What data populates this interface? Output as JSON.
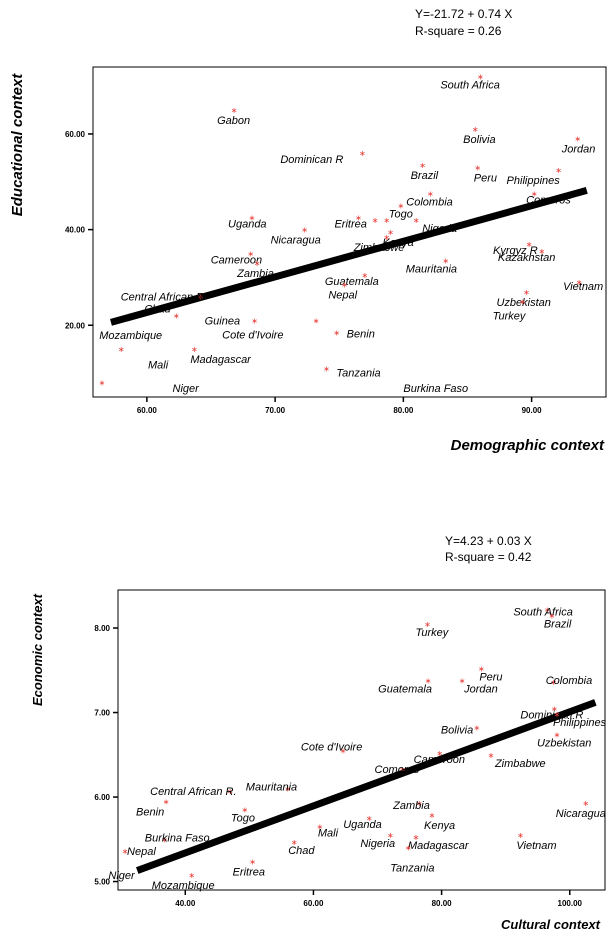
{
  "chart_data": [
    {
      "type": "scatter",
      "equation": "Y=-21.72 + 0.74 X",
      "r_square": "R-square = 0.26",
      "xlabel": "Demographic context",
      "ylabel": "Educational context",
      "xlim": [
        55.8,
        95.8
      ],
      "ylim": [
        5,
        74
      ],
      "xticks": [
        "60.00",
        "70.00",
        "80.00",
        "90.00"
      ],
      "xtick_values": [
        60,
        70,
        80,
        90
      ],
      "yticks": [
        "20.00",
        "40.00",
        "60.00"
      ],
      "ytick_values": [
        20,
        40,
        60
      ],
      "regression": {
        "x1": 57.2,
        "y1": 20.6,
        "x2": 94.3,
        "y2": 48.2
      },
      "points": [
        {
          "x": 86.0,
          "y": 72.0,
          "label": "South Africa"
        },
        {
          "x": 66.8,
          "y": 65.0,
          "label": "Gabon"
        },
        {
          "x": 85.6,
          "y": 61.0,
          "label": "Bolivia"
        },
        {
          "x": 93.6,
          "y": 59.0,
          "label": "Jordan"
        },
        {
          "x": 76.8,
          "y": 56.0,
          "label": "Dominican R"
        },
        {
          "x": 81.5,
          "y": 53.5,
          "label": "Brazil"
        },
        {
          "x": 85.8,
          "y": 53.0,
          "label": "Peru"
        },
        {
          "x": 92.1,
          "y": 52.5,
          "label": "Philippines"
        },
        {
          "x": 82.1,
          "y": 47.5,
          "label": "Colombia"
        },
        {
          "x": 90.2,
          "y": 47.5,
          "label": "Comoros"
        },
        {
          "x": 79.8,
          "y": 45.0,
          "label": "Togo"
        },
        {
          "x": 68.2,
          "y": 42.5,
          "label": "Uganda"
        },
        {
          "x": 76.5,
          "y": 42.5,
          "label": "Eritrea"
        },
        {
          "x": 77.8,
          "y": 42.0,
          "label": "",
          "mark": "extra"
        },
        {
          "x": 78.7,
          "y": 42.0,
          "label": "",
          "mark": "extra"
        },
        {
          "x": 81.0,
          "y": 42.0,
          "label": "Nigeria"
        },
        {
          "x": 72.3,
          "y": 40.0,
          "label": "Nicaragua"
        },
        {
          "x": 79.0,
          "y": 39.5,
          "label": "Kenya"
        },
        {
          "x": 78.7,
          "y": 38.5,
          "label": "Zimbabwe"
        },
        {
          "x": 68.1,
          "y": 35.0,
          "label": "Cameroon"
        },
        {
          "x": 89.8,
          "y": 37.0,
          "label": "Kyrgyz R"
        },
        {
          "x": 90.8,
          "y": 35.5,
          "label": "Kazakhstan"
        },
        {
          "x": 83.3,
          "y": 33.5,
          "label": "Mauritania"
        },
        {
          "x": 68.6,
          "y": 33.0,
          "label": "Zambia"
        },
        {
          "x": 77.0,
          "y": 30.5,
          "label": "Guatemala"
        },
        {
          "x": 75.4,
          "y": 28.5,
          "label": "Nepal"
        },
        {
          "x": 93.7,
          "y": 29.0,
          "label": "Vietnam"
        },
        {
          "x": 64.2,
          "y": 26.0,
          "label": "Central African R"
        },
        {
          "x": 89.6,
          "y": 27.0,
          "label": "Uzbekistan"
        },
        {
          "x": 62.3,
          "y": 22.0,
          "label": "Chad"
        },
        {
          "x": 89.3,
          "y": 25.0,
          "label": "Turkey"
        },
        {
          "x": 68.4,
          "y": 21.0,
          "label": "Guinea"
        },
        {
          "x": 73.2,
          "y": 21.0,
          "label": "Cote d'Ivoire"
        },
        {
          "x": 74.8,
          "y": 18.5,
          "label": "Benin"
        },
        {
          "x": 58.0,
          "y": 15.0,
          "label": "Mozambique"
        },
        {
          "x": 63.7,
          "y": 15.0,
          "label": "Madagascar"
        },
        {
          "x": 74.0,
          "y": 11.0,
          "label": "Tanzania"
        },
        {
          "x": 56.5,
          "y": 8.0,
          "label": "Mali"
        },
        {
          "x": 62.0,
          "y": 6.0,
          "label": "Niger",
          "mark": "none"
        },
        {
          "x": 80.0,
          "y": 6.0,
          "label": "Burkina Faso",
          "mark": "none"
        }
      ]
    },
    {
      "type": "scatter",
      "equation": "Y=4.23 + 0.03 X",
      "r_square": "R-square = 0.42",
      "xlabel": "Cultural context",
      "ylabel": "Economic context",
      "xlim": [
        29.5,
        105.5
      ],
      "ylim": [
        4.9,
        8.45
      ],
      "xticks": [
        "40.00",
        "60.00",
        "80.00",
        "100.00"
      ],
      "xtick_values": [
        40,
        60,
        80,
        100
      ],
      "yticks": [
        "5.00",
        "6.00",
        "7.00",
        "8.00"
      ],
      "ytick_values": [
        5,
        6,
        7,
        8
      ],
      "regression": {
        "x1": 32.5,
        "y1": 5.13,
        "x2": 104.0,
        "y2": 7.12
      },
      "points": [
        {
          "x": 96.5,
          "y": 8.22,
          "label": "South Africa"
        },
        {
          "x": 97.2,
          "y": 8.15,
          "label": "Brazil"
        },
        {
          "x": 77.8,
          "y": 8.05,
          "label": "Turkey"
        },
        {
          "x": 86.2,
          "y": 7.52,
          "label": "Peru"
        },
        {
          "x": 97.5,
          "y": 7.36,
          "label": "Colombia"
        },
        {
          "x": 83.2,
          "y": 7.38,
          "label": "Jordan"
        },
        {
          "x": 77.9,
          "y": 7.38,
          "label": "Guatemala"
        },
        {
          "x": 97.6,
          "y": 7.05,
          "label": "Dominican R"
        },
        {
          "x": 98.0,
          "y": 6.98,
          "label": "Philippines"
        },
        {
          "x": 85.5,
          "y": 6.82,
          "label": "Bolivia"
        },
        {
          "x": 98.0,
          "y": 6.74,
          "label": "Uzbekistan"
        },
        {
          "x": 64.6,
          "y": 6.55,
          "label": "Cote d'Ivoire"
        },
        {
          "x": 79.7,
          "y": 6.52,
          "label": "Cameroon"
        },
        {
          "x": 87.7,
          "y": 6.5,
          "label": "Zimbabwe"
        },
        {
          "x": 73.9,
          "y": 6.33,
          "label": "Comoros"
        },
        {
          "x": 56.0,
          "y": 6.1,
          "label": "Mauritania"
        },
        {
          "x": 47.0,
          "y": 6.07,
          "label": "Central African R."
        },
        {
          "x": 37.0,
          "y": 5.95,
          "label": "Benin"
        },
        {
          "x": 76.5,
          "y": 5.93,
          "label": "Zambia"
        },
        {
          "x": 102.5,
          "y": 5.93,
          "label": "Nicaragua"
        },
        {
          "x": 49.3,
          "y": 5.85,
          "label": "Togo"
        },
        {
          "x": 78.5,
          "y": 5.79,
          "label": "Kenya"
        },
        {
          "x": 68.7,
          "y": 5.75,
          "label": "Uganda"
        },
        {
          "x": 61.0,
          "y": 5.65,
          "label": "Mali"
        },
        {
          "x": 92.3,
          "y": 5.55,
          "label": "Vietnam"
        },
        {
          "x": 76.0,
          "y": 5.53,
          "label": "Madagascar"
        },
        {
          "x": 72.0,
          "y": 5.55,
          "label": "Nigeria"
        },
        {
          "x": 57.0,
          "y": 5.47,
          "label": "Chad"
        },
        {
          "x": 74.8,
          "y": 5.4,
          "label": "Tanzania"
        },
        {
          "x": 36.8,
          "y": 5.5,
          "label": "Burkina Faso"
        },
        {
          "x": 30.6,
          "y": 5.36,
          "label": "Nepal"
        },
        {
          "x": 33.0,
          "y": 5.22,
          "label": "Niger",
          "mark": "none"
        },
        {
          "x": 50.5,
          "y": 5.24,
          "label": "Eritrea"
        },
        {
          "x": 41.0,
          "y": 5.08,
          "label": "Mozambique"
        }
      ]
    }
  ]
}
